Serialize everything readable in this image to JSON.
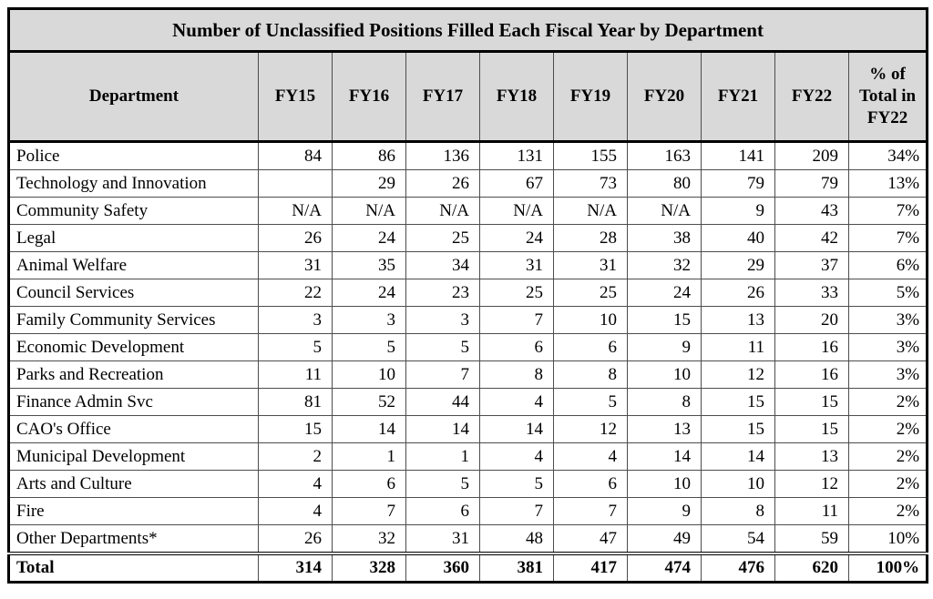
{
  "chart_data": {
    "type": "table",
    "title": "Number of Unclassified Positions Filled Each Fiscal Year by Department",
    "columns": [
      "Department",
      "FY15",
      "FY16",
      "FY17",
      "FY18",
      "FY19",
      "FY20",
      "FY21",
      "FY22",
      "% of Total in FY22"
    ],
    "rows": [
      {
        "department": "Police",
        "values": [
          84,
          86,
          136,
          131,
          155,
          163,
          141,
          209
        ],
        "pct_of_total_fy22": "34%"
      },
      {
        "department": "Technology and Innovation",
        "values": [
          null,
          29,
          26,
          67,
          73,
          80,
          79,
          79
        ],
        "pct_of_total_fy22": "13%"
      },
      {
        "department": "Community Safety",
        "values": [
          "N/A",
          "N/A",
          "N/A",
          "N/A",
          "N/A",
          "N/A",
          9,
          43
        ],
        "pct_of_total_fy22": "7%"
      },
      {
        "department": "Legal",
        "values": [
          26,
          24,
          25,
          24,
          28,
          38,
          40,
          42
        ],
        "pct_of_total_fy22": "7%"
      },
      {
        "department": "Animal Welfare",
        "values": [
          31,
          35,
          34,
          31,
          31,
          32,
          29,
          37
        ],
        "pct_of_total_fy22": "6%"
      },
      {
        "department": "Council Services",
        "values": [
          22,
          24,
          23,
          25,
          25,
          24,
          26,
          33
        ],
        "pct_of_total_fy22": "5%"
      },
      {
        "department": "Family Community Services",
        "values": [
          3,
          3,
          3,
          7,
          10,
          15,
          13,
          20
        ],
        "pct_of_total_fy22": "3%"
      },
      {
        "department": "Economic Development",
        "values": [
          5,
          5,
          5,
          6,
          6,
          9,
          11,
          16
        ],
        "pct_of_total_fy22": "3%"
      },
      {
        "department": "Parks and Recreation",
        "values": [
          11,
          10,
          7,
          8,
          8,
          10,
          12,
          16
        ],
        "pct_of_total_fy22": "3%"
      },
      {
        "department": "Finance Admin Svc",
        "values": [
          81,
          52,
          44,
          4,
          5,
          8,
          15,
          15
        ],
        "pct_of_total_fy22": "2%"
      },
      {
        "department": "CAO's Office",
        "values": [
          15,
          14,
          14,
          14,
          12,
          13,
          15,
          15
        ],
        "pct_of_total_fy22": "2%"
      },
      {
        "department": "Municipal Development",
        "values": [
          2,
          1,
          1,
          4,
          4,
          14,
          14,
          13
        ],
        "pct_of_total_fy22": "2%"
      },
      {
        "department": "Arts and Culture",
        "values": [
          4,
          6,
          5,
          5,
          6,
          10,
          10,
          12
        ],
        "pct_of_total_fy22": "2%"
      },
      {
        "department": "Fire",
        "values": [
          4,
          7,
          6,
          7,
          7,
          9,
          8,
          11
        ],
        "pct_of_total_fy22": "2%"
      },
      {
        "department": "Other Departments*",
        "values": [
          26,
          32,
          31,
          48,
          47,
          49,
          54,
          59
        ],
        "pct_of_total_fy22": "10%"
      }
    ],
    "total_row": {
      "label": "Total",
      "values": [
        314,
        328,
        360,
        381,
        417,
        474,
        476,
        620
      ],
      "pct_of_total_fy22": "100%"
    },
    "layout": {
      "header_background": "#d9d9d9",
      "body_background": "#ffffff",
      "outer_border_color": "#000000",
      "inner_border_color": "#4d4d4d",
      "total_separator": "double-line"
    }
  }
}
